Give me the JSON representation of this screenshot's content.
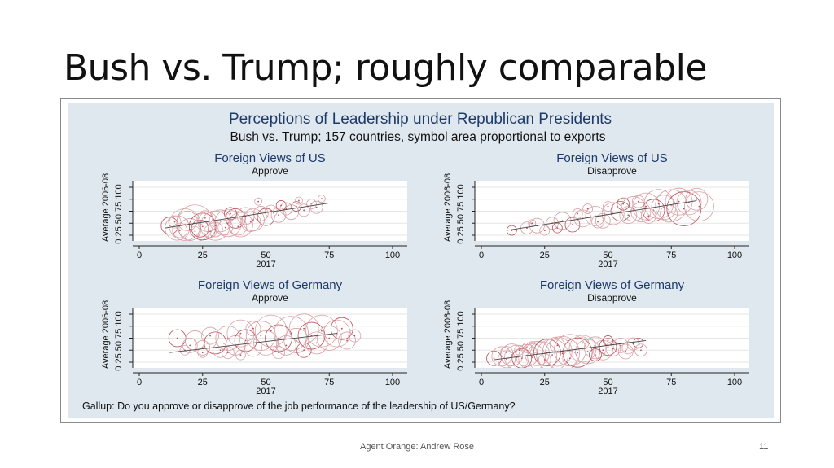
{
  "slide": {
    "title": "Bush vs. Trump; roughly comparable",
    "footer": "Agent Orange: Andrew Rose",
    "page_number": "11"
  },
  "colors": {
    "figure_background": "#dfe8ee",
    "plot_background": "#ffffff",
    "title_navy": "#1f3b6b",
    "bubble_outline": "#d9a0a5",
    "bubble_outline_dark": "#b8515b",
    "fit_line": "#444444"
  },
  "chart_data": {
    "type": "scatter",
    "title": "Perceptions of Leadership under Republican Presidents",
    "subtitle": "Bush vs. Trump; 157 countries, symbol area proportional to exports",
    "note": "Gallup: Do you approve or disapprove of the job performance of the leadership of US/Germany?",
    "panels": [
      {
        "title": "Foreign Views of US",
        "subtitle": "Approve",
        "xlabel": "2017",
        "ylabel": "Average 2006-08",
        "xlim": [
          0,
          100
        ],
        "ylim": [
          0,
          100
        ],
        "xticks": [
          "0",
          "25",
          "50",
          "75",
          "100"
        ],
        "yticks": [
          "0",
          "25",
          "50",
          "75",
          "100"
        ],
        "fit": [
          [
            10,
            15
          ],
          [
            75,
            67
          ]
        ],
        "points": [
          [
            12,
            20,
            14
          ],
          [
            15,
            15,
            20
          ],
          [
            18,
            22,
            26
          ],
          [
            20,
            12,
            18
          ],
          [
            22,
            25,
            30
          ],
          [
            25,
            18,
            22
          ],
          [
            27,
            28,
            16
          ],
          [
            30,
            20,
            24
          ],
          [
            32,
            30,
            18
          ],
          [
            35,
            25,
            22
          ],
          [
            38,
            35,
            16
          ],
          [
            40,
            22,
            20
          ],
          [
            42,
            40,
            14
          ],
          [
            45,
            32,
            18
          ],
          [
            48,
            45,
            12
          ],
          [
            50,
            38,
            14
          ],
          [
            52,
            50,
            10
          ],
          [
            55,
            42,
            12
          ],
          [
            58,
            55,
            10
          ],
          [
            60,
            48,
            12
          ],
          [
            62,
            60,
            8
          ],
          [
            65,
            52,
            10
          ],
          [
            68,
            65,
            8
          ],
          [
            70,
            58,
            10
          ],
          [
            16,
            10,
            12
          ],
          [
            24,
            14,
            14
          ],
          [
            28,
            8,
            10
          ],
          [
            34,
            16,
            12
          ],
          [
            19,
            30,
            16
          ],
          [
            26,
            36,
            12
          ],
          [
            36,
            45,
            10
          ],
          [
            44,
            28,
            16
          ],
          [
            14,
            28,
            10
          ],
          [
            30,
            12,
            12
          ],
          [
            22,
            8,
            8
          ],
          [
            56,
            62,
            8
          ],
          [
            63,
            72,
            6
          ],
          [
            47,
            70,
            6
          ],
          [
            72,
            76,
            6
          ],
          [
            39,
            18,
            14
          ]
        ]
      },
      {
        "title": "Foreign Views of US",
        "subtitle": "Disapprove",
        "xlabel": "2017",
        "ylabel": "Average 2006-08",
        "xlim": [
          0,
          100
        ],
        "ylim": [
          0,
          100
        ],
        "xticks": [
          "0",
          "25",
          "50",
          "75",
          "100"
        ],
        "yticks": [
          "0",
          "25",
          "50",
          "75",
          "100"
        ],
        "fit": [
          [
            10,
            10
          ],
          [
            85,
            72
          ]
        ],
        "points": [
          [
            12,
            10,
            8
          ],
          [
            18,
            15,
            10
          ],
          [
            22,
            20,
            12
          ],
          [
            28,
            25,
            10
          ],
          [
            32,
            30,
            14
          ],
          [
            36,
            22,
            12
          ],
          [
            40,
            35,
            14
          ],
          [
            45,
            40,
            16
          ],
          [
            48,
            30,
            12
          ],
          [
            52,
            45,
            18
          ],
          [
            55,
            50,
            16
          ],
          [
            58,
            42,
            14
          ],
          [
            60,
            55,
            20
          ],
          [
            63,
            48,
            16
          ],
          [
            65,
            60,
            22
          ],
          [
            68,
            52,
            18
          ],
          [
            70,
            65,
            24
          ],
          [
            72,
            58,
            20
          ],
          [
            75,
            62,
            26
          ],
          [
            78,
            70,
            22
          ],
          [
            80,
            55,
            28
          ],
          [
            82,
            68,
            20
          ],
          [
            85,
            75,
            18
          ],
          [
            66,
            40,
            12
          ],
          [
            74,
            45,
            14
          ],
          [
            56,
            65,
            10
          ],
          [
            42,
            55,
            8
          ],
          [
            50,
            60,
            8
          ],
          [
            62,
            70,
            10
          ],
          [
            86,
            60,
            24
          ],
          [
            30,
            15,
            8
          ],
          [
            25,
            10,
            8
          ],
          [
            20,
            25,
            6
          ],
          [
            46,
            28,
            10
          ],
          [
            38,
            45,
            8
          ]
        ]
      },
      {
        "title": "Foreign Views of Germany",
        "subtitle": "Approve",
        "xlabel": "2017",
        "ylabel": "Average 2006-08",
        "xlim": [
          0,
          100
        ],
        "ylim": [
          0,
          100
        ],
        "xticks": [
          "0",
          "25",
          "50",
          "75",
          "100"
        ],
        "yticks": [
          "0",
          "25",
          "50",
          "75",
          "100"
        ],
        "fit": [
          [
            12,
            20
          ],
          [
            78,
            60
          ]
        ],
        "points": [
          [
            15,
            50,
            14
          ],
          [
            20,
            35,
            12
          ],
          [
            22,
            45,
            16
          ],
          [
            25,
            30,
            12
          ],
          [
            28,
            55,
            14
          ],
          [
            30,
            40,
            18
          ],
          [
            32,
            25,
            12
          ],
          [
            35,
            50,
            20
          ],
          [
            38,
            35,
            16
          ],
          [
            40,
            60,
            22
          ],
          [
            42,
            45,
            18
          ],
          [
            45,
            30,
            14
          ],
          [
            48,
            55,
            24
          ],
          [
            50,
            40,
            20
          ],
          [
            52,
            65,
            26
          ],
          [
            55,
            50,
            22
          ],
          [
            58,
            35,
            16
          ],
          [
            60,
            60,
            28
          ],
          [
            62,
            45,
            20
          ],
          [
            65,
            70,
            24
          ],
          [
            68,
            55,
            22
          ],
          [
            70,
            40,
            18
          ],
          [
            72,
            65,
            26
          ],
          [
            75,
            50,
            20
          ],
          [
            78,
            60,
            22
          ],
          [
            80,
            70,
            18
          ],
          [
            82,
            45,
            14
          ],
          [
            45,
            70,
            12
          ],
          [
            35,
            20,
            10
          ],
          [
            55,
            20,
            10
          ],
          [
            65,
            25,
            12
          ],
          [
            25,
            20,
            8
          ],
          [
            18,
            25,
            8
          ],
          [
            40,
            15,
            8
          ],
          [
            85,
            55,
            10
          ]
        ]
      },
      {
        "title": "Foreign Views of Germany",
        "subtitle": "Disapprove",
        "xlabel": "2017",
        "ylabel": "Average 2006-08",
        "xlim": [
          0,
          100
        ],
        "ylim": [
          0,
          100
        ],
        "xticks": [
          "0",
          "25",
          "50",
          "75",
          "100"
        ],
        "yticks": [
          "0",
          "25",
          "50",
          "75",
          "100"
        ],
        "fit": [
          [
            5,
            5
          ],
          [
            65,
            45
          ]
        ],
        "points": [
          [
            5,
            8,
            12
          ],
          [
            8,
            12,
            16
          ],
          [
            10,
            6,
            14
          ],
          [
            12,
            15,
            18
          ],
          [
            14,
            10,
            20
          ],
          [
            16,
            8,
            16
          ],
          [
            18,
            14,
            18
          ],
          [
            20,
            10,
            22
          ],
          [
            22,
            18,
            20
          ],
          [
            24,
            12,
            24
          ],
          [
            26,
            20,
            22
          ],
          [
            28,
            15,
            26
          ],
          [
            30,
            22,
            24
          ],
          [
            32,
            18,
            28
          ],
          [
            35,
            25,
            26
          ],
          [
            38,
            20,
            24
          ],
          [
            40,
            28,
            22
          ],
          [
            42,
            22,
            20
          ],
          [
            45,
            30,
            18
          ],
          [
            48,
            25,
            16
          ],
          [
            50,
            32,
            14
          ],
          [
            52,
            28,
            12
          ],
          [
            55,
            35,
            12
          ],
          [
            58,
            30,
            10
          ],
          [
            60,
            38,
            10
          ],
          [
            62,
            40,
            8
          ],
          [
            10,
            20,
            10
          ],
          [
            15,
            25,
            8
          ],
          [
            20,
            30,
            10
          ],
          [
            30,
            35,
            12
          ],
          [
            45,
            15,
            10
          ],
          [
            35,
            8,
            12
          ],
          [
            25,
            5,
            10
          ],
          [
            18,
            30,
            8
          ],
          [
            40,
            40,
            10
          ],
          [
            50,
            45,
            8
          ],
          [
            57,
            22,
            12
          ],
          [
            63,
            25,
            10
          ]
        ]
      }
    ]
  }
}
